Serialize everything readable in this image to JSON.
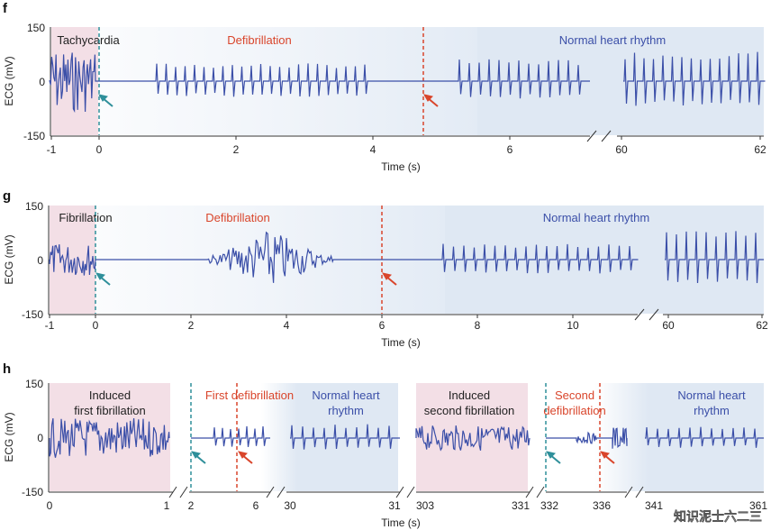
{
  "chart_data": [
    {
      "panel": "f",
      "type": "line",
      "xlabel": "Time (s)",
      "ylabel": "ECG (mV)",
      "ylim": [
        -150,
        150
      ],
      "yticks": [
        "150",
        "0",
        "-150"
      ],
      "xticks": [
        "-1",
        "0",
        "2",
        "4",
        "6",
        "60",
        "62"
      ],
      "regions": [
        {
          "label": "Tachycardia",
          "color": "#222222"
        },
        {
          "label": "Defibrillation",
          "color": "#d9452b"
        },
        {
          "label": "Normal heart rhythm",
          "color": "#3b4fa8"
        }
      ],
      "events": [
        {
          "name": "start",
          "x": 0,
          "style": "teal-dashed"
        },
        {
          "name": "defibrillation",
          "x": 4.75,
          "style": "red-dashed"
        }
      ],
      "break": "6–60 s"
    },
    {
      "panel": "g",
      "type": "line",
      "xlabel": "Time (s)",
      "ylabel": "ECG (mV)",
      "ylim": [
        -150,
        150
      ],
      "yticks": [
        "150",
        "0",
        "-150"
      ],
      "xticks": [
        "-1",
        "0",
        "2",
        "4",
        "6",
        "8",
        "10",
        "60",
        "62"
      ],
      "regions": [
        {
          "label": "Fibrillation",
          "color": "#222222"
        },
        {
          "label": "Defibrillation",
          "color": "#d9452b"
        },
        {
          "label": "Normal heart rhythm",
          "color": "#3b4fa8"
        }
      ],
      "events": [
        {
          "name": "start",
          "x": 0,
          "style": "teal-dashed"
        },
        {
          "name": "defibrillation",
          "x": 6.1,
          "style": "red-dashed"
        }
      ],
      "break": "11–60 s"
    },
    {
      "panel": "h",
      "type": "line",
      "xlabel": "Time (s)",
      "ylabel": "ECG (mV)",
      "ylim": [
        -150,
        150
      ],
      "yticks": [
        "150",
        "0",
        "-150"
      ],
      "xticks": [
        "0",
        "1",
        "2",
        "6",
        "30",
        "31",
        "303",
        "331",
        "332",
        "336",
        "341",
        "361"
      ],
      "regions": [
        {
          "label_lines": [
            "Induced",
            "first fibrillation"
          ],
          "color": "#222222"
        },
        {
          "label_lines": [
            "First defibrillation"
          ],
          "color": "#d9452b"
        },
        {
          "label_lines": [
            "Normal heart",
            "rhythm"
          ],
          "color": "#3b4fa8"
        },
        {
          "label_lines": [
            "Induced",
            "second fibrillation"
          ],
          "color": "#222222"
        },
        {
          "label_lines": [
            "Second",
            "defibrillation"
          ],
          "color": "#d9452b"
        },
        {
          "label_lines": [
            "Normal heart",
            "rhythm"
          ],
          "color": "#3b4fa8"
        }
      ]
    }
  ],
  "watermark": "知识泥士六二三",
  "colors": {
    "trace": "#3b4fa8",
    "fib_region": "#f3dfe6",
    "normal_region": "#dfe8f3",
    "teal_marker": "#2f8f9a",
    "red_marker": "#d9452b"
  }
}
